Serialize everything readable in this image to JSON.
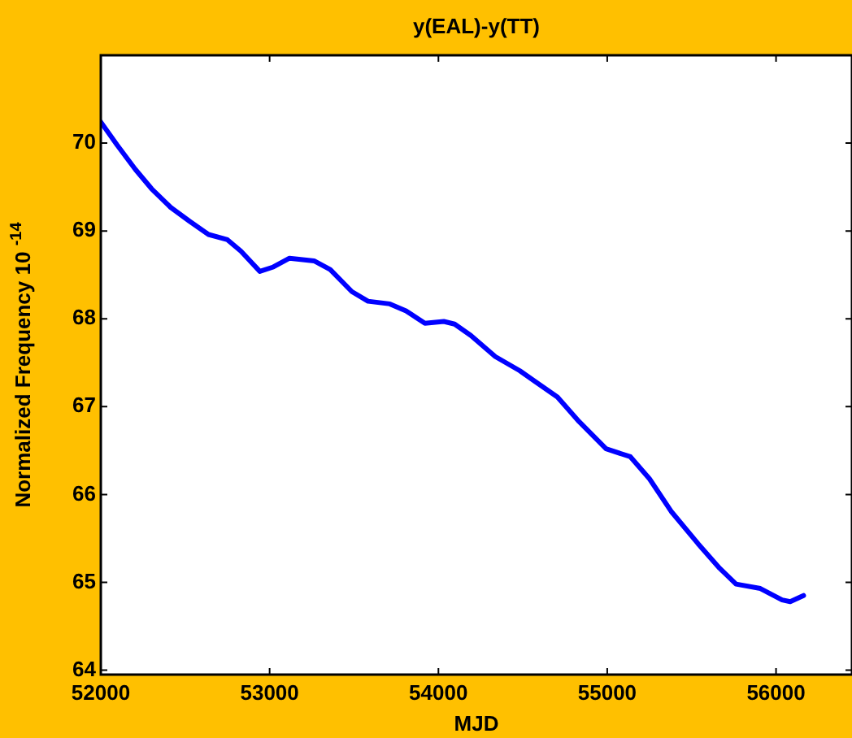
{
  "chart_data": {
    "type": "line",
    "title": "y(EAL)-y(TT)",
    "xlabel": "MJD",
    "ylabel": "Normalized Frequency 10 $^{-14}$",
    "x": [
      52000,
      52096,
      52205,
      52301,
      52413,
      52526,
      52638,
      52750,
      52830,
      52942,
      53022,
      53118,
      53263,
      53359,
      53487,
      53583,
      53712,
      53808,
      53920,
      54032,
      54096,
      54192,
      54337,
      54481,
      54577,
      54705,
      54833,
      54993,
      55137,
      55250,
      55378,
      55538,
      55666,
      55763,
      55907,
      56036,
      56084,
      56163
    ],
    "series": [
      {
        "color": "#0000ff",
        "values": [
          70.24,
          69.98,
          69.7,
          69.48,
          69.27,
          69.11,
          68.96,
          68.9,
          68.77,
          68.54,
          68.59,
          68.69,
          68.66,
          68.56,
          68.31,
          68.2,
          68.17,
          68.09,
          67.95,
          67.97,
          67.94,
          67.81,
          67.57,
          67.41,
          67.28,
          67.11,
          66.83,
          66.52,
          66.43,
          66.18,
          65.81,
          65.44,
          65.16,
          64.98,
          64.93,
          64.8,
          64.78,
          64.85
        ]
      }
    ],
    "xlim": [
      52000,
      56450
    ],
    "xticks": [
      52000,
      53000,
      54000,
      55000,
      56000
    ],
    "ylim": [
      63.95,
      71
    ],
    "yticks": [
      64,
      65,
      66,
      67,
      68,
      69,
      70
    ],
    "grid": false,
    "legend": false,
    "marker": "none",
    "line_style": "solid"
  }
}
